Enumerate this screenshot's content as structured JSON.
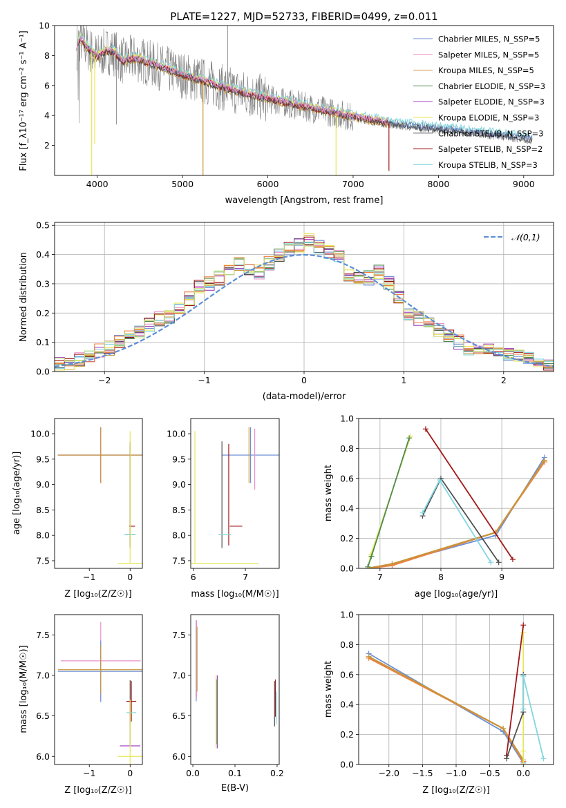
{
  "colors": {
    "Chabrier MILES": "#6c8fd6",
    "Salpeter MILES": "#e892c8",
    "Kroupa MILES": "#c8953a",
    "Chabrier ELODIE": "#4f8a4f",
    "Salpeter ELODIE": "#a040c0",
    "Kroupa ELODIE": "#e6e65a",
    "Chabrier STELIB": "#505050",
    "Salpeter STELIB": "#a01818",
    "Kroupa STELIB": "#80d6e0",
    "data": "#808080",
    "orange": "#ef7f40",
    "normal": "#5b8fd6",
    "lightgreen": "#c6e07a"
  },
  "chart_data": [
    {
      "type": "line",
      "title": "PLATE=1227, MJD=52733, FIBERID=0499, z=0.011",
      "xlabel": "wavelength [Angstrom, rest frame]",
      "ylabel": "Flux [f_λ10⁻¹⁷ erg cm⁻² s⁻¹ A⁻¹]",
      "xlim": [
        3500,
        9350
      ],
      "ylim": [
        0,
        10
      ],
      "xticks": [
        4000,
        5000,
        6000,
        7000,
        8000,
        9000
      ],
      "yticks": [
        2,
        4,
        6,
        8,
        10
      ],
      "legend": [
        "Chabrier MILES, N_SSP=5",
        "Salpeter MILES, N_SSP=5",
        "Kroupa MILES, N_SSP=5",
        "Chabrier ELODIE, N_SSP=3",
        "Salpeter ELODIE, N_SSP=3",
        "Kroupa ELODIE, N_SSP=3",
        "Chabrier STELIB, N_SSP=3",
        "Salpeter STELIB, N_SSP=2",
        "Kroupa STELIB, N_SSP=3"
      ],
      "legend_position": "upper-right",
      "continuum": {
        "x": [
          3760,
          3800,
          3900,
          4000,
          4100,
          4200,
          4300,
          4400,
          4500,
          4700,
          4900,
          5100,
          5300,
          5500,
          5700,
          6000,
          6500,
          7000,
          7500,
          8000,
          8500,
          9000,
          9100
        ],
        "y": [
          8.6,
          9.1,
          8.4,
          7.9,
          8.3,
          8.2,
          7.6,
          7.8,
          7.7,
          7.3,
          6.9,
          6.5,
          6.2,
          5.8,
          5.5,
          5.1,
          4.5,
          3.9,
          3.4,
          3.1,
          2.8,
          2.5,
          2.4
        ]
      }
    },
    {
      "type": "histogram",
      "xlabel": "(data-model)/error",
      "ylabel": "Normed distribution",
      "xlim": [
        -2.5,
        2.5
      ],
      "ylim": [
        0,
        0.51
      ],
      "xticks": [
        -2,
        -1,
        0,
        1,
        2
      ],
      "yticks": [
        0.0,
        0.1,
        0.2,
        0.3,
        0.4,
        0.5
      ],
      "grid": true,
      "legend": [
        "𝒩(0,1)"
      ],
      "legend_position": "upper-right",
      "bin_width": 0.1,
      "bin_start": -2.5,
      "reference": [
        0.026,
        0.03,
        0.04,
        0.055,
        0.07,
        0.08,
        0.1,
        0.12,
        0.14,
        0.16,
        0.18,
        0.19,
        0.21,
        0.25,
        0.29,
        0.3,
        0.32,
        0.34,
        0.37,
        0.35,
        0.34,
        0.37,
        0.4,
        0.42,
        0.43,
        0.45,
        0.43,
        0.41,
        0.39,
        0.33,
        0.32,
        0.32,
        0.34,
        0.3,
        0.25,
        0.2,
        0.18,
        0.17,
        0.14,
        0.12,
        0.1,
        0.08,
        0.075,
        0.075,
        0.065,
        0.06,
        0.05,
        0.045,
        0.03,
        0.02
      ]
    },
    {
      "type": "errorbar",
      "xlabel": "Z [log₁₀(Z/Z☉)]",
      "ylabel": "age  [log₁₀(age/yr)]",
      "xlim": [
        -1.85,
        0.3
      ],
      "ylim": [
        7.35,
        10.3
      ],
      "xticks": [
        -1,
        0
      ],
      "yticks": [
        7.5,
        8.0,
        8.5,
        9.0,
        9.5,
        10.0
      ],
      "points": [
        {
          "c": "Chabrier MILES",
          "x": -0.72,
          "xe": 1.05,
          "y": 9.58,
          "ye": 0.55
        },
        {
          "c": "Salpeter MILES",
          "x": -0.72,
          "xe": 1.05,
          "y": 9.58,
          "ye": 0.55
        },
        {
          "c": "Kroupa MILES",
          "x": -0.72,
          "xe": 1.05,
          "y": 9.58,
          "ye": 0.55
        },
        {
          "c": "Chabrier ELODIE",
          "x": 0.0,
          "y": 8.02,
          "xe": 0.12,
          "ye": 0.0
        },
        {
          "c": "Kroupa ELODIE",
          "x": 0.0,
          "y": 7.45,
          "xe": 0.3,
          "ye": 0.0
        },
        {
          "c": "Salpeter STELIB",
          "x": 0.0,
          "y": 8.8,
          "xe": 0.0,
          "ye": 1.0
        },
        {
          "c": "Chabrier STELIB",
          "x": 0.0,
          "y": 8.8,
          "xe": 0.0,
          "ye": 1.05
        },
        {
          "c": "Salpeter STELIB",
          "x": 0.05,
          "y": 8.18,
          "xe": 0.07,
          "ye": 0.0
        },
        {
          "c": "Kroupa STELIB",
          "x": 0.0,
          "y": 8.02,
          "xe": 0.14,
          "ye": 0.0
        },
        {
          "c": "Kroupa ELODIE",
          "x": 0.0,
          "y": 8.75,
          "xe": 0.0,
          "ye": 1.3
        }
      ]
    },
    {
      "type": "errorbar",
      "xlabel": "mass [log₁₀(M/M☉)]",
      "xlim": [
        5.95,
        7.65
      ],
      "ylim": [
        7.35,
        10.3
      ],
      "xticks": [
        6,
        7
      ],
      "yticks": [
        7.5,
        8.0,
        8.5,
        9.0,
        9.5,
        10.0
      ],
      "points": [
        {
          "c": "Chabrier MILES",
          "x": 7.1,
          "xe": 0.55,
          "y": 9.58,
          "ye": 0.55
        },
        {
          "c": "Salpeter MILES",
          "x": 7.18,
          "xe": 0.0,
          "y": 9.5,
          "ye": 0.6
        },
        {
          "c": "Kroupa MILES",
          "x": 7.07,
          "xe": 0.0,
          "y": 9.58,
          "ye": 0.55
        },
        {
          "c": "Kroupa ELODIE",
          "x": 6.03,
          "xe": 0.0,
          "y": 8.75,
          "ye": 1.3
        },
        {
          "c": "Kroupa ELODIE",
          "x": 6.55,
          "xe": 0.7,
          "y": 7.45,
          "ye": 0.0
        },
        {
          "c": "Chabrier STELIB",
          "x": 6.55,
          "xe": 0.0,
          "y": 8.8,
          "ye": 1.05
        },
        {
          "c": "Salpeter STELIB",
          "x": 6.68,
          "xe": 0.0,
          "y": 8.8,
          "ye": 1.0
        },
        {
          "c": "Salpeter STELIB",
          "x": 6.82,
          "xe": 0.12,
          "y": 8.18,
          "ye": 0.0
        },
        {
          "c": "Kroupa STELIB",
          "x": 6.6,
          "xe": 0.12,
          "y": 8.02,
          "ye": 0.0
        }
      ]
    },
    {
      "type": "line",
      "xlabel": "age  [log₁₀(age/yr)]",
      "ylabel": "mass weight",
      "xlim": [
        6.65,
        9.85
      ],
      "ylim": [
        0,
        1.0
      ],
      "xticks": [
        7,
        8,
        9
      ],
      "yticks": [
        0.0,
        0.2,
        0.4,
        0.6,
        0.8,
        1.0
      ],
      "grid": true,
      "series": [
        {
          "c": "Chabrier MILES",
          "x": [
            6.8,
            7.2,
            8.9,
            9.7
          ],
          "y": [
            0.0,
            0.03,
            0.22,
            0.74
          ]
        },
        {
          "c": "Salpeter MILES",
          "x": [
            6.8,
            7.2,
            8.9,
            9.7
          ],
          "y": [
            0.0,
            0.02,
            0.24,
            0.71
          ]
        },
        {
          "c": "Kroupa MILES",
          "x": [
            6.8,
            7.2,
            8.9,
            9.7
          ],
          "y": [
            0.0,
            0.03,
            0.24,
            0.72
          ]
        },
        {
          "c": "Kroupa ELODIE",
          "x": [
            6.8,
            6.85,
            7.5
          ],
          "y": [
            0.0,
            0.09,
            0.88
          ]
        },
        {
          "c": "Chabrier ELODIE",
          "x": [
            6.8,
            6.86,
            7.48
          ],
          "y": [
            0.01,
            0.08,
            0.87
          ]
        },
        {
          "c": "Salpeter STELIB",
          "x": [
            7.75,
            9.18
          ],
          "y": [
            0.93,
            0.06
          ]
        },
        {
          "c": "Chabrier STELIB",
          "x": [
            7.7,
            8.0,
            8.95
          ],
          "y": [
            0.35,
            0.6,
            0.04
          ]
        },
        {
          "c": "Kroupa STELIB",
          "x": [
            7.7,
            7.98,
            8.82
          ],
          "y": [
            0.37,
            0.59,
            0.04
          ]
        }
      ]
    },
    {
      "type": "errorbar",
      "xlabel": "Z [log₁₀(Z/Z☉)]",
      "ylabel": "mass [log₁₀(M/M☉)]",
      "xlim": [
        -1.85,
        0.3
      ],
      "ylim": [
        5.9,
        7.75
      ],
      "xticks": [
        -1,
        0
      ],
      "yticks": [
        6.0,
        6.5,
        7.0,
        7.5
      ],
      "points": [
        {
          "c": "Salpeter MILES",
          "x": -0.72,
          "xe": 0.98,
          "y": 7.18,
          "ye": 0.48
        },
        {
          "c": "Chabrier MILES",
          "x": -0.72,
          "xe": 1.05,
          "y": 7.05,
          "ye": 0.38
        },
        {
          "c": "Kroupa MILES",
          "x": -0.72,
          "xe": 1.05,
          "y": 7.07,
          "ye": 0.3
        },
        {
          "c": "Salpeter ELODIE",
          "x": 0.0,
          "y": 6.13,
          "xe": 0.25,
          "ye": 0.0
        },
        {
          "c": "Kroupa ELODIE",
          "x": 0.0,
          "y": 6.0,
          "xe": 0.3,
          "ye": 0.0
        },
        {
          "c": "Salpeter STELIB",
          "x": 0.03,
          "y": 6.68,
          "xe": 0.12,
          "ye": 0.25
        },
        {
          "c": "Kroupa STELIB",
          "x": 0.03,
          "y": 6.54,
          "xe": 0.12,
          "ye": 0.0
        },
        {
          "c": "Chabrier STELIB",
          "x": 0.0,
          "y": 6.54,
          "xe": 0.0,
          "ye": 0.4
        },
        {
          "c": "Kroupa ELODIE",
          "x": 0.0,
          "y": 6.3,
          "xe": 0.0,
          "ye": 0.4
        }
      ]
    },
    {
      "type": "errorbar",
      "xlabel": "E(B-V)",
      "xlim": [
        -0.005,
        0.205
      ],
      "ylim": [
        5.9,
        7.75
      ],
      "xticks": [
        0.0,
        0.1,
        0.2
      ],
      "yticks": [
        6.0,
        6.5,
        7.0,
        7.5
      ],
      "points": [
        {
          "c": "Chabrier MILES",
          "x": 0.008,
          "xe": 0.0,
          "y": 7.18,
          "ye": 0.5
        },
        {
          "c": "Salpeter MILES",
          "x": 0.009,
          "xe": 0.0,
          "y": 7.2,
          "ye": 0.48
        },
        {
          "c": "Kroupa MILES",
          "x": 0.01,
          "xe": 0.0,
          "y": 7.2,
          "ye": 0.4
        },
        {
          "c": "Salpeter ELODIE",
          "x": 0.058,
          "xe": 0.0,
          "y": 6.55,
          "ye": 0.45
        },
        {
          "c": "Chabrier ELODIE",
          "x": 0.057,
          "xe": 0.0,
          "y": 6.55,
          "ye": 0.4
        },
        {
          "c": "Kroupa ELODIE",
          "x": 0.055,
          "xe": 0.0,
          "y": 6.55,
          "ye": 0.45
        },
        {
          "c": "Salpeter STELIB",
          "x": 0.196,
          "xe": 0.0,
          "y": 6.72,
          "ye": 0.23
        },
        {
          "c": "Chabrier STELIB",
          "x": 0.194,
          "xe": 0.0,
          "y": 6.65,
          "ye": 0.28
        },
        {
          "c": "Kroupa STELIB",
          "x": 0.198,
          "xe": 0.0,
          "y": 6.6,
          "ye": 0.2
        }
      ]
    },
    {
      "type": "line",
      "xlabel": "Z [log₁₀(Z/Z☉)]",
      "ylabel": "mass weight",
      "xlim": [
        -2.45,
        0.45
      ],
      "ylim": [
        0,
        1.0
      ],
      "xticks": [
        -2.0,
        -1.5,
        -1.0,
        -0.5,
        0.0
      ],
      "yticks": [
        0.0,
        0.2,
        0.4,
        0.6,
        0.8,
        1.0
      ],
      "grid": true,
      "series": [
        {
          "c": "Chabrier MILES",
          "x": [
            -2.3,
            -0.3,
            0.0
          ],
          "y": [
            0.74,
            0.22,
            0.01
          ]
        },
        {
          "c": "Salpeter MILES",
          "x": [
            -2.3,
            -0.3,
            0.0
          ],
          "y": [
            0.71,
            0.24,
            0.02
          ]
        },
        {
          "c": "Kroupa MILES",
          "x": [
            -2.3,
            -0.3,
            0.0
          ],
          "y": [
            0.72,
            0.24,
            0.03
          ]
        },
        {
          "c": "Kroupa ELODIE",
          "x": [
            0.0,
            0.0,
            0.0
          ],
          "y": [
            0.0,
            0.09,
            0.88
          ]
        },
        {
          "c": "Salpeter STELIB",
          "x": [
            -0.25,
            0.0
          ],
          "y": [
            0.06,
            0.93
          ]
        },
        {
          "c": "Chabrier STELIB",
          "x": [
            -0.25,
            0.0,
            0.0
          ],
          "y": [
            0.04,
            0.35,
            0.6
          ]
        },
        {
          "c": "Kroupa STELIB",
          "x": [
            0.0,
            0.0,
            0.3
          ],
          "y": [
            0.37,
            0.59,
            0.04
          ]
        }
      ]
    }
  ]
}
